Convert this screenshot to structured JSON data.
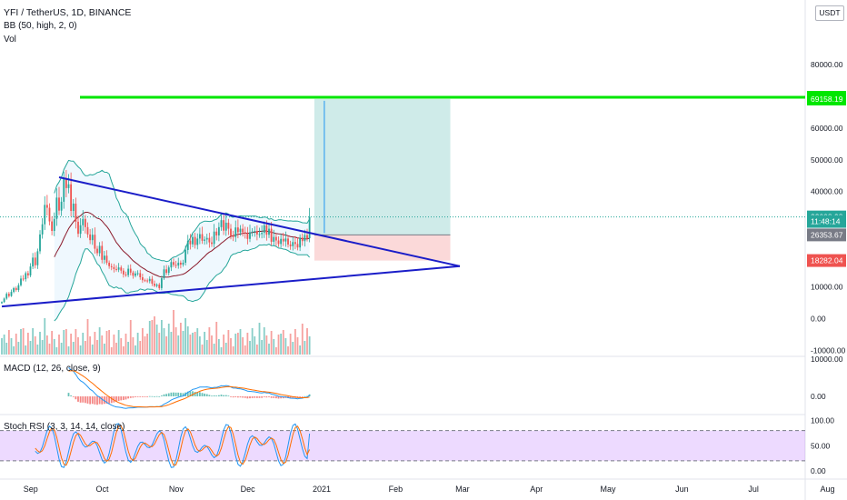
{
  "chart_data": {
    "type": "candlestick",
    "symbol_title": "YFI / TetherUS, 1D, BINANCE",
    "currency_label": "USDT",
    "indicators": {
      "bb_label": "BB (50, high, 2, 0)",
      "vol_label": "Vol",
      "macd_label": "MACD (12, 26, close, 9)",
      "stoch_label": "Stoch RSI (3, 3, 14, 14, close)"
    },
    "price_axis": {
      "ticks": [
        {
          "value": 80000,
          "label": "80000.00"
        },
        {
          "value": 60000,
          "label": "60000.00"
        },
        {
          "value": 50000,
          "label": "50000.00"
        },
        {
          "value": 40000,
          "label": "40000.00"
        },
        {
          "value": 10000,
          "label": "10000.00"
        },
        {
          "value": 0,
          "label": "0.00"
        },
        {
          "value": -10000,
          "label": "-10000.00"
        }
      ]
    },
    "price_labels": [
      {
        "value": 69695.03,
        "text": "69695.03",
        "color": "#00e600"
      },
      {
        "value": 69158.19,
        "text": "69158.19",
        "color": "#00e600"
      },
      {
        "value": 32008.98,
        "text": "32008.98",
        "color": "#26a69a"
      },
      {
        "value": 30600,
        "text": "11:48:14",
        "color": "#26a69a"
      },
      {
        "value": 26353.67,
        "text": "26353.67",
        "color": "#787b86"
      },
      {
        "value": 18282.04,
        "text": "18282.04",
        "color": "#ef5350"
      }
    ],
    "macd_axis": {
      "ticks": [
        {
          "value": 10000,
          "label": "10000.00"
        },
        {
          "value": 0,
          "label": "0.00"
        }
      ]
    },
    "stoch_axis": {
      "ticks": [
        {
          "value": 100,
          "label": "100.00"
        },
        {
          "value": 50,
          "label": "50.00"
        },
        {
          "value": 0,
          "label": "0.00"
        }
      ]
    },
    "time_axis": {
      "labels": [
        {
          "day": 6,
          "text": "Sep"
        },
        {
          "day": 36,
          "text": "Oct"
        },
        {
          "day": 67,
          "text": "Nov"
        },
        {
          "day": 97,
          "text": "Dec"
        },
        {
          "day": 128,
          "text": "2021"
        },
        {
          "day": 159,
          "text": "Feb"
        },
        {
          "day": 187,
          "text": "Mar"
        },
        {
          "day": 218,
          "text": "Apr"
        },
        {
          "day": 248,
          "text": "May"
        },
        {
          "day": 279,
          "text": "Jun"
        },
        {
          "day": 309,
          "text": "Jul"
        },
        {
          "day": 340,
          "text": "Aug"
        }
      ]
    },
    "closes": [
      5200,
      6300,
      7800,
      7100,
      8400,
      9600,
      9000,
      10500,
      12600,
      12400,
      14300,
      13600,
      16400,
      19200,
      16800,
      21200,
      26500,
      29700,
      35800,
      34900,
      30600,
      27600,
      31400,
      38100,
      34000,
      36800,
      44000,
      41100,
      42300,
      33900,
      36200,
      30500,
      26700,
      29400,
      31400,
      28800,
      26500,
      24700,
      26400,
      22000,
      20600,
      22900,
      18500,
      19800,
      17600,
      16500,
      16200,
      15600,
      15400,
      16100,
      15100,
      13900,
      13700,
      15700,
      14500,
      13500,
      14200,
      14300,
      13000,
      12100,
      12000,
      11800,
      12500,
      11000,
      10300,
      10700,
      9600,
      12700,
      15500,
      14400,
      16100,
      17800,
      16900,
      16700,
      17600,
      17000,
      17600,
      21600,
      24500,
      23400,
      25700,
      23200,
      25200,
      26600,
      24500,
      24900,
      25400,
      24000,
      23500,
      27400,
      26200,
      28800,
      31000,
      27700,
      30200,
      28300,
      26000,
      25700,
      28700,
      27200,
      28300,
      27200,
      26800,
      25100,
      27200,
      27400,
      27600,
      26500,
      26600,
      27000,
      29400,
      26400,
      28300,
      24200,
      25700,
      24600,
      23500,
      25100,
      24300,
      25200,
      23300,
      22800,
      24100,
      23500,
      22400,
      25500,
      24400,
      26300,
      25300,
      32009
    ],
    "trade_setup": {
      "entry": 26353.67,
      "target": 69158.19,
      "stop": 18282.04,
      "start_day": 131,
      "end_day": 188,
      "resistance_level": 69695.03
    },
    "trendlines": [
      {
        "from_day": 0,
        "from_price": 3800,
        "to_day": 192,
        "to_price": 16500,
        "color": "#1a1dc8"
      },
      {
        "from_day": 24,
        "from_price": 44500,
        "to_day": 192,
        "to_price": 16500,
        "color": "#1a1dc8"
      }
    ],
    "stoch_bands": {
      "upper": 80,
      "lower": 20
    }
  }
}
